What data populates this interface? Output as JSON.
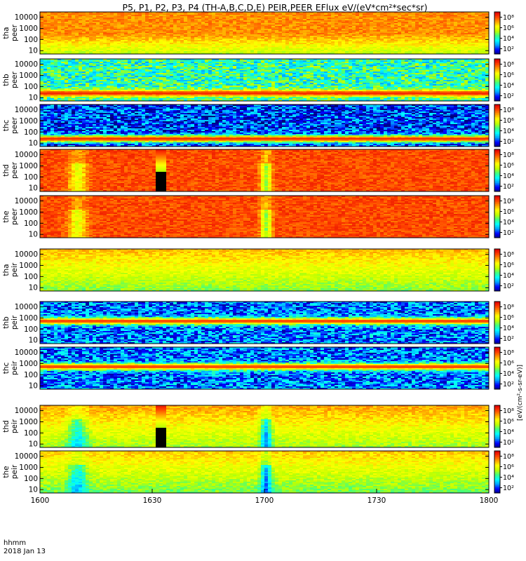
{
  "chart_data": {
    "type": "heatmap",
    "title": "P5, P1, P2, P3, P4 (TH-A,B,C,D,E) PEIR,PEER EFlux eV/(eV*cm²*sec*sr)",
    "x_ticks": [
      "1600",
      "1630",
      "1700",
      "1730",
      "1800"
    ],
    "x_range_hhmm": [
      "1600",
      "1800"
    ],
    "footer_left": [
      "hhmm",
      "2018 Jan 13"
    ],
    "y_scale": "log",
    "y_range_eV": [
      5,
      30000
    ],
    "y_ticks": [
      "10000",
      "1000",
      "100",
      "10"
    ],
    "colorbar_scale": "log",
    "colorbar_range": [
      10,
      1000000000
    ],
    "colorbar_ticks": [
      "10⁸",
      "10⁶",
      "10⁴",
      "10²"
    ],
    "colorbar_label": "[eV/(cm²-s-sr-eV)]",
    "colormap": [
      "#000080",
      "#0000ff",
      "#00a0ff",
      "#00ffff",
      "#40ff80",
      "#c0ff00",
      "#ffff00",
      "#ffa000",
      "#ff4000",
      "#e00000"
    ],
    "panels": [
      {
        "probe": "tha",
        "species": "peer",
        "label": [
          "tha",
          "peer"
        ],
        "background_level": 0.8,
        "low_energy_level": 0.55
      },
      {
        "probe": "thb",
        "species": "peer",
        "label": [
          "thb",
          "peer"
        ],
        "background_level": 0.4,
        "band_level": 0.93
      },
      {
        "probe": "thc",
        "species": "peer",
        "label": [
          "thc",
          "peer"
        ],
        "background_level": 0.15,
        "band_level": 0.93
      },
      {
        "probe": "thd",
        "species": "peer",
        "label": [
          "thd",
          "peer"
        ],
        "background_level": 0.88,
        "gap_hhmm": "1632"
      },
      {
        "probe": "the",
        "species": "peer",
        "label": [
          "the",
          "peer"
        ],
        "background_level": 0.88
      },
      {
        "probe": "tha",
        "species": "peir",
        "label": [
          "tha",
          "peir"
        ],
        "background_level": 0.62
      },
      {
        "probe": "thb",
        "species": "peir",
        "label": [
          "thb",
          "peir"
        ],
        "background_level": 0.2,
        "band_level": 0.9
      },
      {
        "probe": "thc",
        "species": "peir",
        "label": [
          "thc",
          "peir"
        ],
        "background_level": 0.2,
        "band_level": 0.9
      },
      {
        "probe": "thd",
        "species": "peir",
        "label": [
          "thd",
          "peir"
        ],
        "background_level": 0.65,
        "gap_hhmm": "1632"
      },
      {
        "probe": "the",
        "species": "peir",
        "label": [
          "the",
          "peir"
        ],
        "background_level": 0.6
      }
    ]
  }
}
